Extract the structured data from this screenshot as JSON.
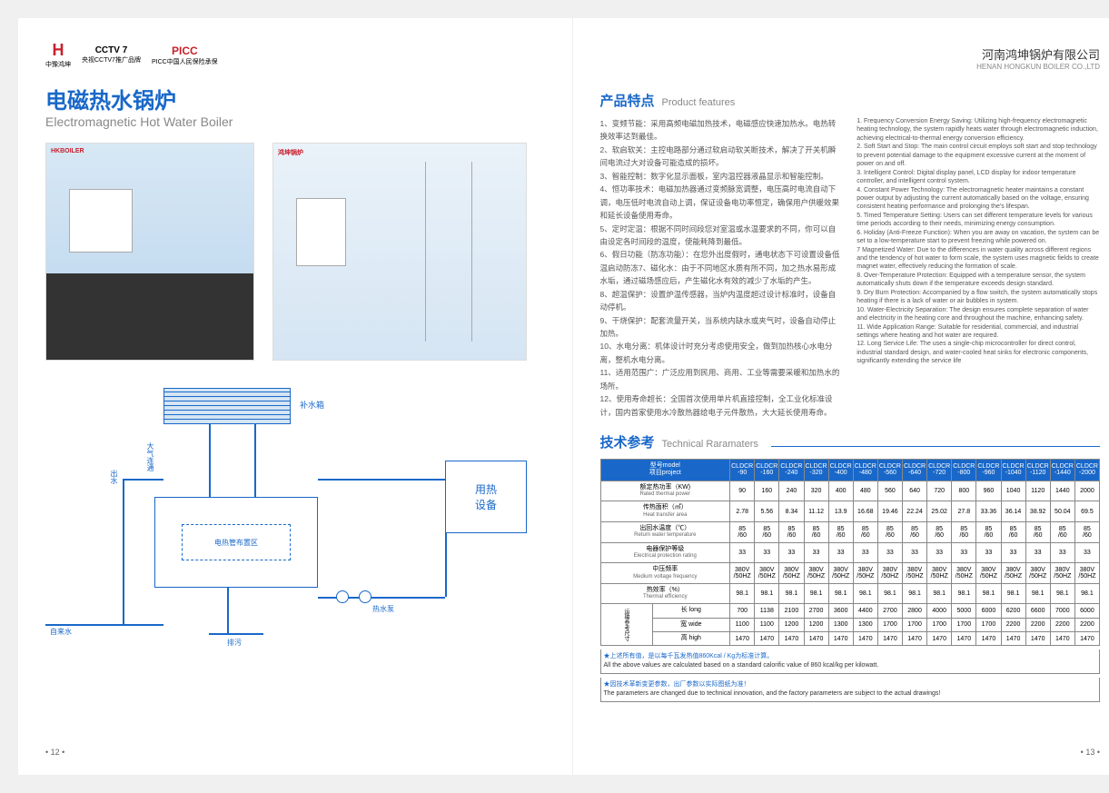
{
  "logos": {
    "brand_char": "H",
    "brand_cn": "中豫鸿坤",
    "cctv": "CCTV 7",
    "cctv_sub": "央视CCTV7推广品牌",
    "picc": "PICC",
    "picc_sub": "PICC中国人民保险承保"
  },
  "company": {
    "cn": "河南鸿坤锅炉有限公司",
    "en": "HENAN HONGKUN BOILER CO.,LTD"
  },
  "title": {
    "cn": "电磁热水锅炉",
    "en": "Electromagnetic Hot Water Boiler"
  },
  "product_labels": {
    "p1": "HKBOILER",
    "p2": "鸿坤锅炉"
  },
  "schematic": {
    "tank_label": "补水箱",
    "main_label": "电热管布置区",
    "heat_label": "用热\n设备",
    "outlet": "出水",
    "atm": "大气连通",
    "hotbox": "热水泵",
    "inlet": "自来水",
    "drain": "排污"
  },
  "features_title": {
    "cn": "产品特点",
    "en": "Product features"
  },
  "features_cn": [
    "1、变频节能：采用高频电磁加热技术，电磁感应快速加热水。电热转换效率达到最佳。",
    "2、软启软关：主控电路部分通过软启动软关断技术，解决了开关机瞬间电流过大对设备可能造成的损坏。",
    "3、智能控制：数字化显示面板，室内温控器液晶显示和智能控制。",
    "4、恒功率技术：电磁加热器通过变频脉宽调整，电压高时电流自动下调，电压低时电流自动上调，保证设备电功率恒定，确保用户供暖效果和延长设备使用寿命。",
    "5、定时定温：根据不同时间段您对室温或水温要求的不同，你可以自由设定各时间段的温度，使能耗降到最低。",
    "6、假日功能（防冻功能）：在您外出度假时，通电状态下可设置设备低温启动防冻7、磁化水：由于不同地区水质有所不同，加之热水易形成水垢，通过磁场感应后，产生磁化水有效的减少了水垢的产生。",
    "8、超温保护：设置炉温传感器，当炉内温度超过设计标准时，设备自动停机。",
    "9、干烧保护：配套流量开关，当系统内缺水或夹气时，设备自动停止加热。",
    "10、水电分离：机体设计时充分考虑使用安全，做到加热核心水电分离，整机水电分离。",
    "11、适用范围广：广泛应用到民用、商用、工业等需要采暖和加热水的场所。",
    "12、使用寿命超长：全国首次使用单片机直接控制，全工业化标准设计，国内首家使用水冷散热器给电子元件散热，大大延长使用寿命。"
  ],
  "features_en": [
    "1. Frequency Conversion Energy Saving: Utilizing high-frequency electromagnetic heating technology, the system rapidly heats water through electromagnetic induction, achieving electrical-to-thermal energy conversion efficiency.",
    "2. Soft Start and Stop: The main control circuit employs soft start and stop technology to prevent potential damage to the equipment excessive current at the moment of power on and off.",
    "3. Intelligent Control: Digital display panel, LCD display for indoor temperature controller, and intelligent control system.",
    "4. Constant Power Technology: The electromagnetic heater maintains a constant power output by adjusting the current automatically based on the voltage, ensuring consistent heating performance and prolonging the's lifespan.",
    "5. Timed Temperature Setting: Users can set different temperature levels for various time periods according to their needs, minimizing energy consumption.",
    "6. Holiday (Anti-Freeze Function): When you are away on vacation, the system can be set to a low-temperature start to prevent freezing while powered on.",
    "7 Magnetized Water: Due to the differences in water quality across different regions and the tendency of hot water to form scale, the system uses magnetic fields to create magnet water, effectively reducing the formation of scale.",
    "8. Over-Temperature Protection: Equipped with a temperature sensor, the system automatically shuts down if the temperature exceeds design standard.",
    "9. Dry Burn Protection: Accompanied by a flow switch, the system automatically stops heating if there is a lack of water or air bubbles in system.",
    "10. Water-Electricity Separation: The design ensures complete separation of water and electricity in the heating core and throughout the machine, enhancing safety.",
    "11. Wide Application Range: Suitable for residential, commercial, and industrial settings where heating and hot water are required.",
    "12. Long Service Life: The uses a single-chip microcontroller for direct control, industrial standard design, and water-cooled heat sinks for electronic components, significantly extending the service life"
  ],
  "tech_title": {
    "cn": "技术参考",
    "en": "Technical Raramaters"
  },
  "table": {
    "header_project_cn": "项目project",
    "header_model_cn": "型号model",
    "models": [
      "CLDCR-90",
      "CLDCR-160",
      "CLDCR-240",
      "CLDCR-320",
      "CLDCR-400",
      "CLDCR-480",
      "CLDCR-560",
      "CLDCR-640",
      "CLDCR-720",
      "CLDCR-800",
      "CLDCR-960",
      "CLDCR-1040",
      "CLDCR-1120",
      "CLDCR-1440",
      "CLDCR-2000"
    ],
    "rows": [
      {
        "cn": "额定热功率（KW)",
        "en": "Rated thermal power",
        "vals": [
          "90",
          "160",
          "240",
          "320",
          "400",
          "480",
          "560",
          "640",
          "720",
          "800",
          "960",
          "1040",
          "1120",
          "1440",
          "2000"
        ]
      },
      {
        "cn": "传热面积（㎡）",
        "en": "Heat transfer area",
        "vals": [
          "2.78",
          "5.56",
          "8.34",
          "11.12",
          "13.9",
          "16.68",
          "19.46",
          "22.24",
          "25.02",
          "27.8",
          "33.36",
          "36.14",
          "38.92",
          "50.04",
          "69.5"
        ]
      },
      {
        "cn": "出回水温度（℃）",
        "en": "Return water temperature",
        "vals": [
          "85/60",
          "85/60",
          "85/60",
          "85/60",
          "85/60",
          "85/60",
          "85/60",
          "85/60",
          "85/60",
          "85/60",
          "85/60",
          "85/60",
          "85/60",
          "85/60",
          "85/60"
        ]
      },
      {
        "cn": "电器保护等级",
        "en": "Electrical protection rating",
        "vals": [
          "33",
          "33",
          "33",
          "33",
          "33",
          "33",
          "33",
          "33",
          "33",
          "33",
          "33",
          "33",
          "33",
          "33",
          "33"
        ]
      },
      {
        "cn": "中压频率",
        "en": "Medium voltage frequency",
        "vals": [
          "380V/50HZ",
          "380V/50HZ",
          "380V/50HZ",
          "380V/50HZ",
          "380V/50HZ",
          "380V/50HZ",
          "380V/50HZ",
          "380V/50HZ",
          "380V/50HZ",
          "380V/50HZ",
          "380V/50HZ",
          "380V/50HZ",
          "380V/50HZ",
          "380V/50HZ",
          "380V/50HZ"
        ]
      },
      {
        "cn": "热效率（%）",
        "en": "Thermal efficiency",
        "vals": [
          "98.1",
          "98.1",
          "98.1",
          "98.1",
          "98.1",
          "98.1",
          "98.1",
          "98.1",
          "98.1",
          "98.1",
          "98.1",
          "98.1",
          "98.1",
          "98.1",
          "98.1"
        ]
      }
    ],
    "dim_group_label_cn": "运输参考尺寸",
    "dim_group_label_en": "Transportation reference size",
    "dim_rows": [
      {
        "cn": "长 long",
        "vals": [
          "700",
          "1138",
          "2100",
          "2700",
          "3600",
          "4400",
          "2700",
          "2800",
          "4000",
          "5000",
          "6000",
          "6200",
          "6600",
          "7000",
          "6000"
        ]
      },
      {
        "cn": "宽 wide",
        "vals": [
          "1100",
          "1100",
          "1200",
          "1200",
          "1300",
          "1300",
          "1700",
          "1700",
          "1700",
          "1700",
          "1700",
          "2200",
          "2200",
          "2200",
          "2200"
        ]
      },
      {
        "cn": "高 high",
        "vals": [
          "1470",
          "1470",
          "1470",
          "1470",
          "1470",
          "1470",
          "1470",
          "1470",
          "1470",
          "1470",
          "1470",
          "1470",
          "1470",
          "1470",
          "1470"
        ]
      }
    ],
    "note1_cn": "★上述所有值，是以每千瓦发热值860Kcal / Kg为标准计算。",
    "note1_en": "All the above values are calculated based on a standard calorific value of 860 kcal/kg per kilowatt.",
    "note2_cn": "★因技术革新变更参数，出厂参数以实际图纸为准！",
    "note2_en": "The parameters are changed due to technical innovation, and the factory parameters are subject to the actual drawings!"
  },
  "page_nums": {
    "left": "• 12 •",
    "right": "• 13 •"
  },
  "colors": {
    "primary": "#1968c9",
    "accent": "#c8202d",
    "text": "#555",
    "border": "#888"
  }
}
